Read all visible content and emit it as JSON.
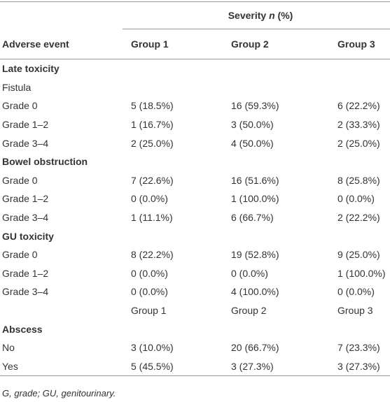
{
  "table": {
    "severity_header": {
      "before": "Severity",
      "italic": "n",
      "after": "(%)"
    },
    "column_headers": [
      "Adverse event",
      "Group 1",
      "Group 2",
      "Group 3"
    ],
    "sections": [
      {
        "title": "Late toxicity",
        "subtitle": "Fistula",
        "rows": [
          [
            "Grade 0",
            "5 (18.5%)",
            "16 (59.3%)",
            "6 (22.2%)"
          ],
          [
            "Grade 1–2",
            "1 (16.7%)",
            "3 (50.0%)",
            "2 (33.3%)"
          ],
          [
            "Grade 3–4",
            "2 (25.0%)",
            "4 (50.0%)",
            "2 (25.0%)"
          ]
        ]
      },
      {
        "title": "Bowel obstruction",
        "rows": [
          [
            "Grade 0",
            "7 (22.6%)",
            "16 (51.6%)",
            "8 (25.8%)"
          ],
          [
            "Grade 1–2",
            "0 (0.0%)",
            "1 (100.0%)",
            "0 (0.0%)"
          ],
          [
            "Grade 3–4",
            "1 (11.1%)",
            "6 (66.7%)",
            "2 (22.2%)"
          ]
        ]
      },
      {
        "title": "GU toxicity",
        "rows": [
          [
            "Grade 0",
            "8 (22.2%)",
            "19 (52.8%)",
            "9 (25.0%)"
          ],
          [
            "Grade 1–2",
            "0 (0.0%)",
            "0 (0.0%)",
            "1 (100.0%)"
          ],
          [
            "Grade 3–4",
            "0 (0.0%)",
            "4 (100.0%)",
            "0 (0.0%)"
          ]
        ]
      },
      {
        "groups": [
          "Group 1",
          "Group 2",
          "Group 3"
        ],
        "title": "Abscess",
        "rows": [
          [
            "No",
            "3 (10.0%)",
            "20 (66.7%)",
            "7 (23.3%)"
          ],
          [
            "Yes",
            "5 (45.5%)",
            "3 (27.3%)",
            "3 (27.3%)"
          ]
        ]
      }
    ],
    "footnote": "G, grade; GU, genitourinary."
  }
}
